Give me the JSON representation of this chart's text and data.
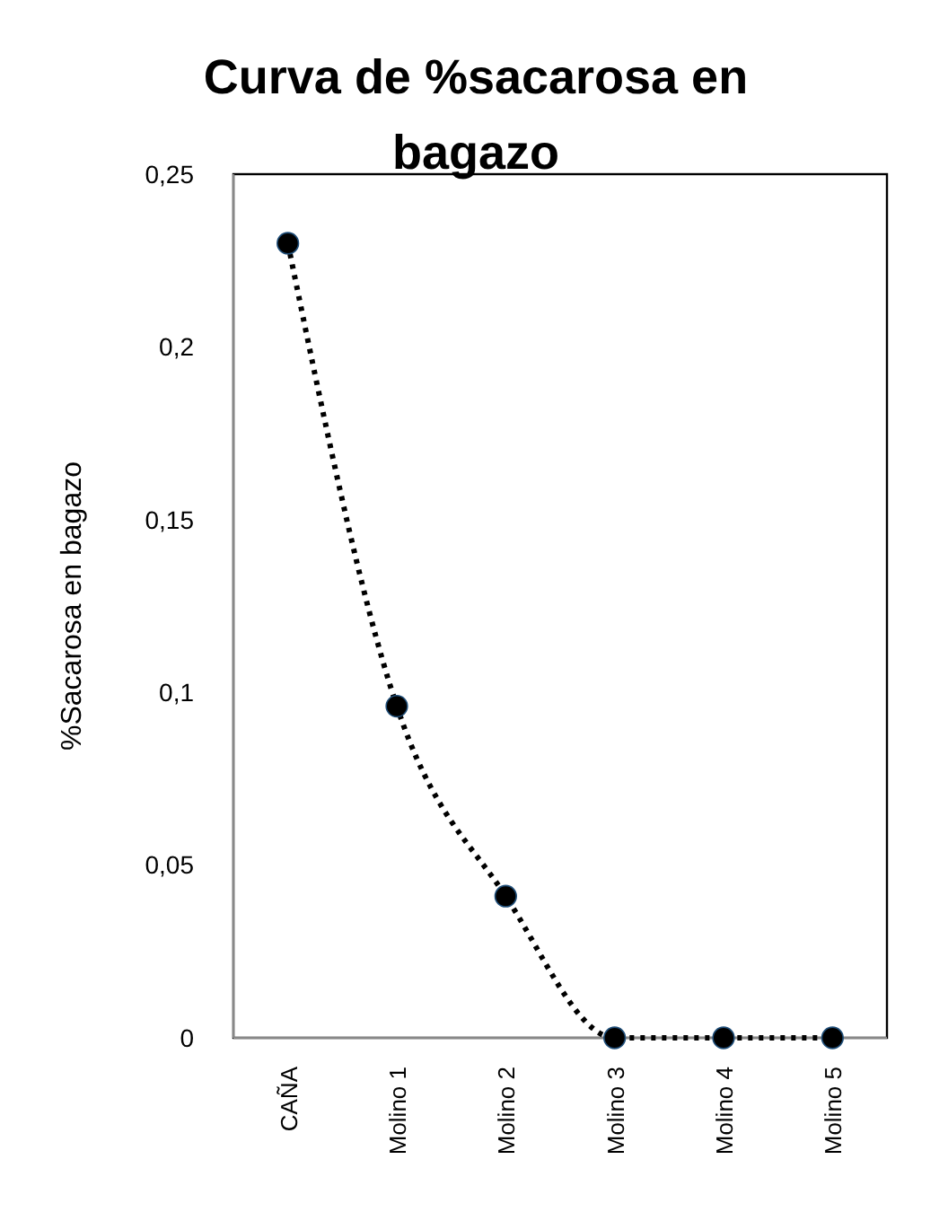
{
  "chart_data": {
    "type": "line",
    "title": "Curva de %sacarosa en bagazo",
    "ylabel": "%Sacarosa en bagazo",
    "categories": [
      "CAÑA",
      "Molino 1",
      "Molino 2",
      "Molino 3",
      "Molino 4",
      "Molino 5"
    ],
    "series": [
      {
        "color": "#000000",
        "values": [
          0.23,
          0.096,
          0.041,
          0,
          0,
          0
        ]
      }
    ],
    "ylim": [
      0,
      0.25
    ],
    "yticks": [
      {
        "value": 0,
        "label": "0"
      },
      {
        "value": 0.05,
        "label": "0,05"
      },
      {
        "value": 0.1,
        "label": "0,1"
      },
      {
        "value": 0.15,
        "label": "0,15"
      },
      {
        "value": 0.2,
        "label": "0,2"
      },
      {
        "value": 0.25,
        "label": "0,25"
      }
    ],
    "grid": false,
    "marker": "circle",
    "line_style": "dotted"
  }
}
